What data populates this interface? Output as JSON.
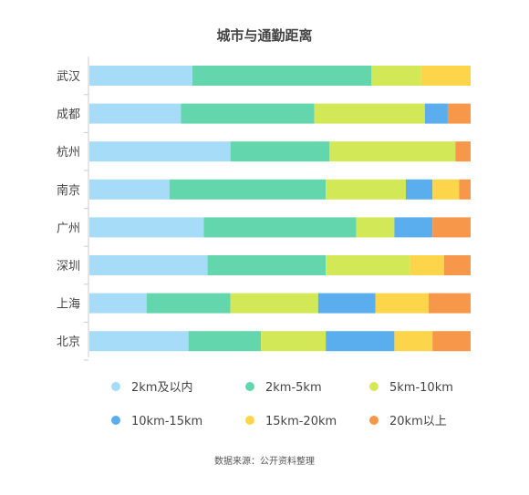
{
  "chart_data": {
    "type": "bar",
    "orientation": "horizontal",
    "stacked": true,
    "percent": true,
    "title": "城市与通勤距离",
    "source": "数据来源：公开资料整理",
    "categories": [
      "武汉",
      "成都",
      "杭州",
      "南京",
      "广州",
      "深圳",
      "上海",
      "北京"
    ],
    "series": [
      {
        "name": "2km及以内",
        "color": "#a6dcf7",
        "values": [
          27,
          24,
          37,
          21,
          30,
          31,
          15,
          26
        ]
      },
      {
        "name": "2km-5km",
        "color": "#63d6ad",
        "values": [
          47,
          35,
          26,
          41,
          40,
          31,
          22,
          19
        ]
      },
      {
        "name": "5km-10km",
        "color": "#d3e857",
        "values": [
          13,
          29,
          33,
          21,
          10,
          22,
          23,
          17
        ]
      },
      {
        "name": "10km-15km",
        "color": "#5aaeed",
        "values": [
          0,
          6,
          0,
          7,
          10,
          0,
          15,
          18
        ]
      },
      {
        "name": "15km-20km",
        "color": "#fdd54a",
        "values": [
          13,
          0,
          0,
          7,
          0,
          9,
          14,
          10
        ]
      },
      {
        "name": "20km以上",
        "color": "#f7974a",
        "values": [
          0,
          6,
          4,
          3,
          10,
          7,
          11,
          10
        ]
      }
    ],
    "xlim": [
      0,
      100
    ],
    "grid": false,
    "legend_position": "bottom"
  }
}
